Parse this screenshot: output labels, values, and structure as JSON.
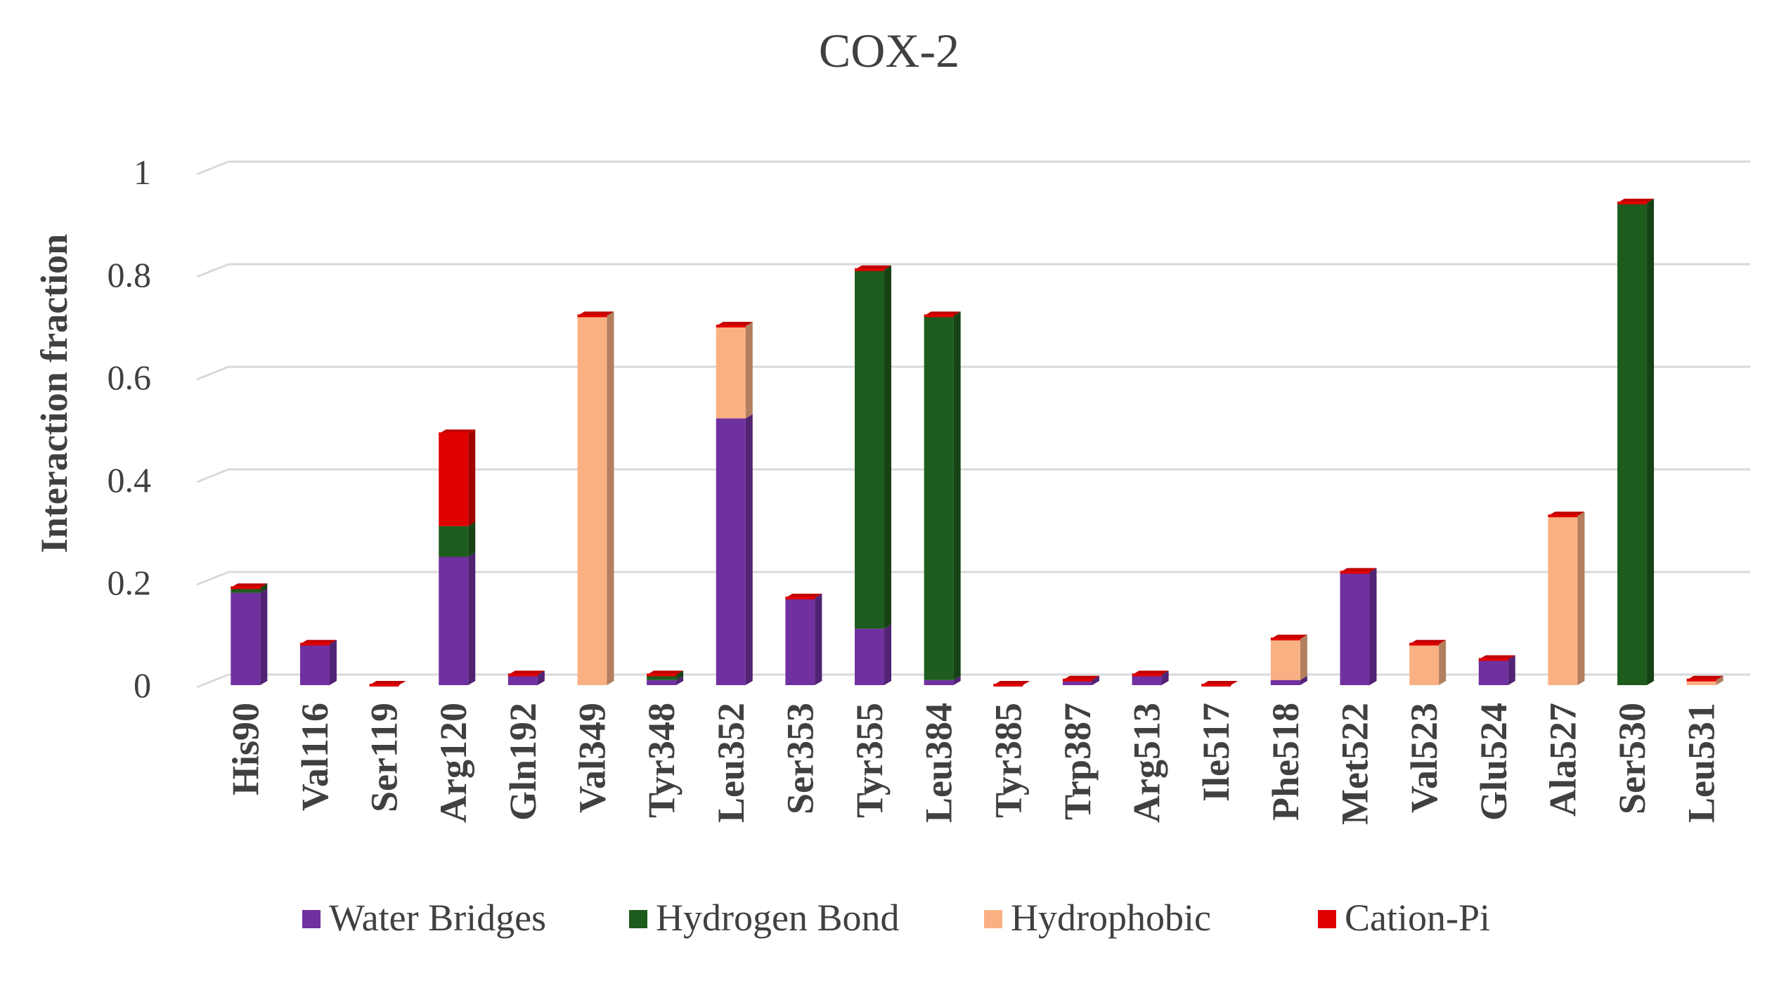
{
  "chart_data": {
    "type": "bar",
    "stacked": true,
    "title": "COX-2",
    "xlabel": "",
    "ylabel": "Interaction  fraction",
    "ylim": [
      0,
      1
    ],
    "yticks": [
      "0",
      "0.2",
      "0.4",
      "0.6",
      "0.8",
      "1"
    ],
    "grid": true,
    "legend_position": "bottom",
    "categories": [
      "His90",
      "Val116",
      "Ser119",
      "Arg120",
      "Gln192",
      "Val349",
      "Tyr348",
      "Leu352",
      "Ser353",
      "Tyr355",
      "Leu384",
      "Tyr385",
      "Trp387",
      "Arg513",
      "Ile517",
      "Phe518",
      "Met522",
      "Val523",
      "Glu524",
      "Ala527",
      "Ser530",
      "Leu531"
    ],
    "series": [
      {
        "name": "Water Bridges",
        "color": "#7030a0",
        "values": [
          0.18,
          0.08,
          0.0,
          0.25,
          0.02,
          0.0,
          0.01,
          0.52,
          0.17,
          0.11,
          0.01,
          0.0,
          0.01,
          0.02,
          0.0,
          0.01,
          0.22,
          0.0,
          0.05,
          0.0,
          0.0,
          0.0
        ]
      },
      {
        "name": "Hydrogen Bond",
        "color": "#1e5c1e",
        "values": [
          0.01,
          0.0,
          0.0,
          0.06,
          0.0,
          0.0,
          0.01,
          0.0,
          0.0,
          0.7,
          0.71,
          0.0,
          0.0,
          0.0,
          0.0,
          0.0,
          0.0,
          0.0,
          0.0,
          0.0,
          0.94,
          0.0
        ]
      },
      {
        "name": "Hydrophobic",
        "color": "#f9b184",
        "values": [
          0.0,
          0.0,
          0.0,
          0.0,
          0.0,
          0.72,
          0.0,
          0.18,
          0.0,
          0.0,
          0.0,
          0.0,
          0.0,
          0.0,
          0.0,
          0.08,
          0.0,
          0.08,
          0.0,
          0.33,
          0.0,
          0.01
        ]
      },
      {
        "name": "Cation-Pi",
        "color": "#e00000",
        "values": [
          0.0,
          0.0,
          0.0,
          0.18,
          0.0,
          0.0,
          0.0,
          0.0,
          0.0,
          0.0,
          0.0,
          0.0,
          0.0,
          0.0,
          0.0,
          0.0,
          0.0,
          0.0,
          0.0,
          0.0,
          0.0,
          0.0
        ]
      }
    ]
  }
}
